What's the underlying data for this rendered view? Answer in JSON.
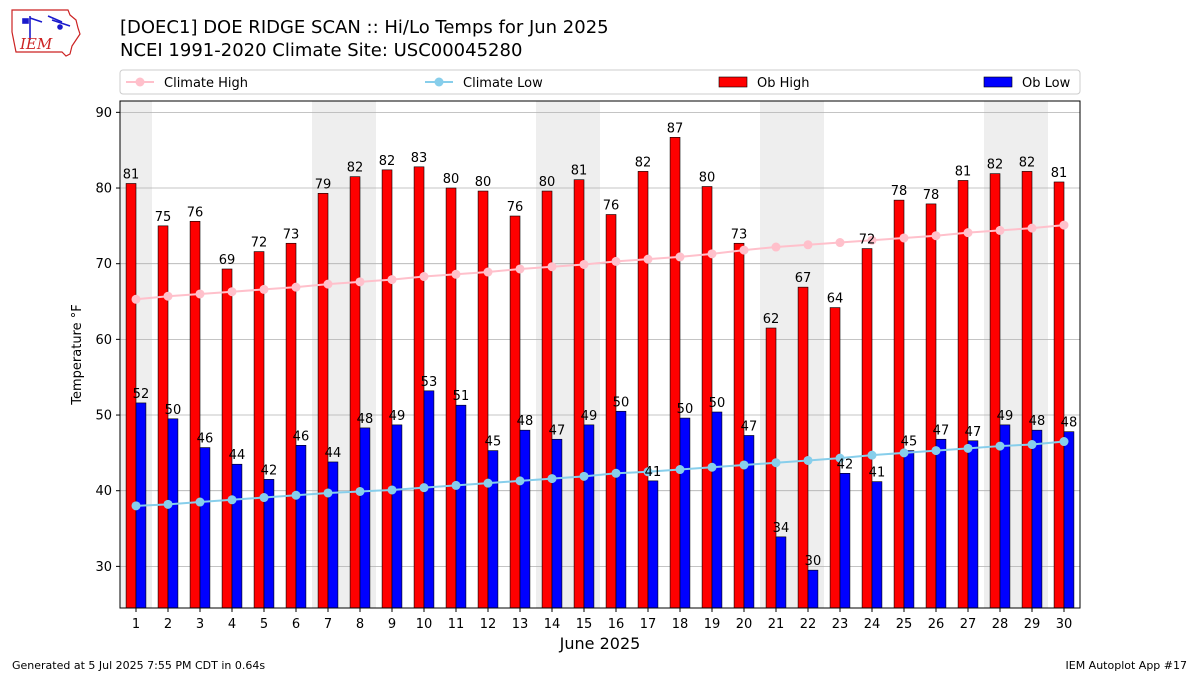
{
  "header": {
    "title_line1": "[DOEC1] DOE RIDGE SCAN :: Hi/Lo Temps for Jun 2025",
    "title_line2": "NCEI 1991-2020 Climate Site: USC00045280",
    "logo_text": "IEM"
  },
  "footer": {
    "generated": "Generated at 5 Jul 2025 7:55 PM CDT in 0.64s",
    "app": "IEM Autoplot App #17"
  },
  "colors": {
    "ob_high": "#ff0000",
    "ob_low": "#0000ff",
    "climate_high": "#ffc0cb",
    "climate_low": "#87ceeb",
    "weekend_band": "#eeeeee",
    "grid": "#b0b0b0",
    "logo_red": "#cc2222",
    "logo_blue": "#1a1acc"
  },
  "chart_data": {
    "type": "bar",
    "xlabel": "June 2025",
    "ylabel": "Temperature °F",
    "ylim": [
      24.5,
      91.5
    ],
    "yticks": [
      30,
      40,
      50,
      60,
      70,
      80,
      90
    ],
    "grid": true,
    "legend_position": "top",
    "categories": [
      "1",
      "2",
      "3",
      "4",
      "5",
      "6",
      "7",
      "8",
      "9",
      "10",
      "11",
      "12",
      "13",
      "14",
      "15",
      "16",
      "17",
      "18",
      "19",
      "20",
      "21",
      "22",
      "23",
      "24",
      "25",
      "26",
      "27",
      "28",
      "29",
      "30"
    ],
    "weekend_days": [
      1,
      7,
      8,
      14,
      15,
      21,
      22,
      28,
      29
    ],
    "series": [
      {
        "name": "Climate High",
        "kind": "line",
        "values": [
          65.3,
          65.7,
          66.0,
          66.3,
          66.6,
          66.9,
          67.3,
          67.6,
          67.9,
          68.3,
          68.6,
          68.9,
          69.3,
          69.6,
          69.9,
          70.3,
          70.6,
          70.9,
          71.3,
          71.8,
          72.2,
          72.5,
          72.8,
          73.1,
          73.4,
          73.7,
          74.1,
          74.4,
          74.7,
          75.1
        ]
      },
      {
        "name": "Climate Low",
        "kind": "line",
        "values": [
          38.0,
          38.2,
          38.5,
          38.8,
          39.1,
          39.4,
          39.7,
          39.9,
          40.1,
          40.4,
          40.7,
          41.0,
          41.3,
          41.6,
          41.9,
          42.3,
          42.5,
          42.8,
          43.1,
          43.4,
          43.7,
          44.0,
          44.3,
          44.7,
          45.0,
          45.3,
          45.6,
          45.9,
          46.1,
          46.5
        ]
      },
      {
        "name": "Ob High",
        "kind": "bar",
        "values": [
          80.6,
          75.0,
          75.6,
          69.3,
          71.6,
          72.7,
          79.3,
          81.5,
          82.4,
          82.8,
          80.0,
          79.6,
          76.3,
          79.6,
          81.1,
          76.5,
          82.2,
          86.7,
          80.2,
          72.7,
          61.5,
          66.9,
          64.2,
          72.0,
          78.4,
          77.9,
          81.0,
          81.9,
          82.2,
          80.8
        ],
        "labels": [
          "81",
          "75",
          "76",
          "69",
          "72",
          "73",
          "79",
          "82",
          "82",
          "83",
          "80",
          "80",
          "76",
          "80",
          "81",
          "76",
          "82",
          "87",
          "80",
          "73",
          "62",
          "67",
          "64",
          "72",
          "78",
          "78",
          "81",
          "82",
          "82",
          "81"
        ]
      },
      {
        "name": "Ob Low",
        "kind": "bar",
        "values": [
          51.6,
          49.5,
          45.7,
          43.5,
          41.5,
          46.0,
          43.8,
          48.3,
          48.7,
          53.2,
          51.3,
          45.3,
          48.0,
          46.8,
          48.7,
          50.5,
          41.3,
          49.6,
          50.4,
          47.3,
          33.9,
          29.5,
          42.3,
          41.2,
          45.3,
          46.8,
          46.6,
          48.7,
          48.0,
          47.8
        ],
        "labels": [
          "52",
          "50",
          "46",
          "44",
          "42",
          "46",
          "44",
          "48",
          "49",
          "53",
          "51",
          "45",
          "48",
          "47",
          "49",
          "50",
          "41",
          "50",
          "50",
          "47",
          "34",
          "30",
          "42",
          "41",
          "45",
          "47",
          "47",
          "49",
          "48",
          "48"
        ]
      }
    ]
  }
}
